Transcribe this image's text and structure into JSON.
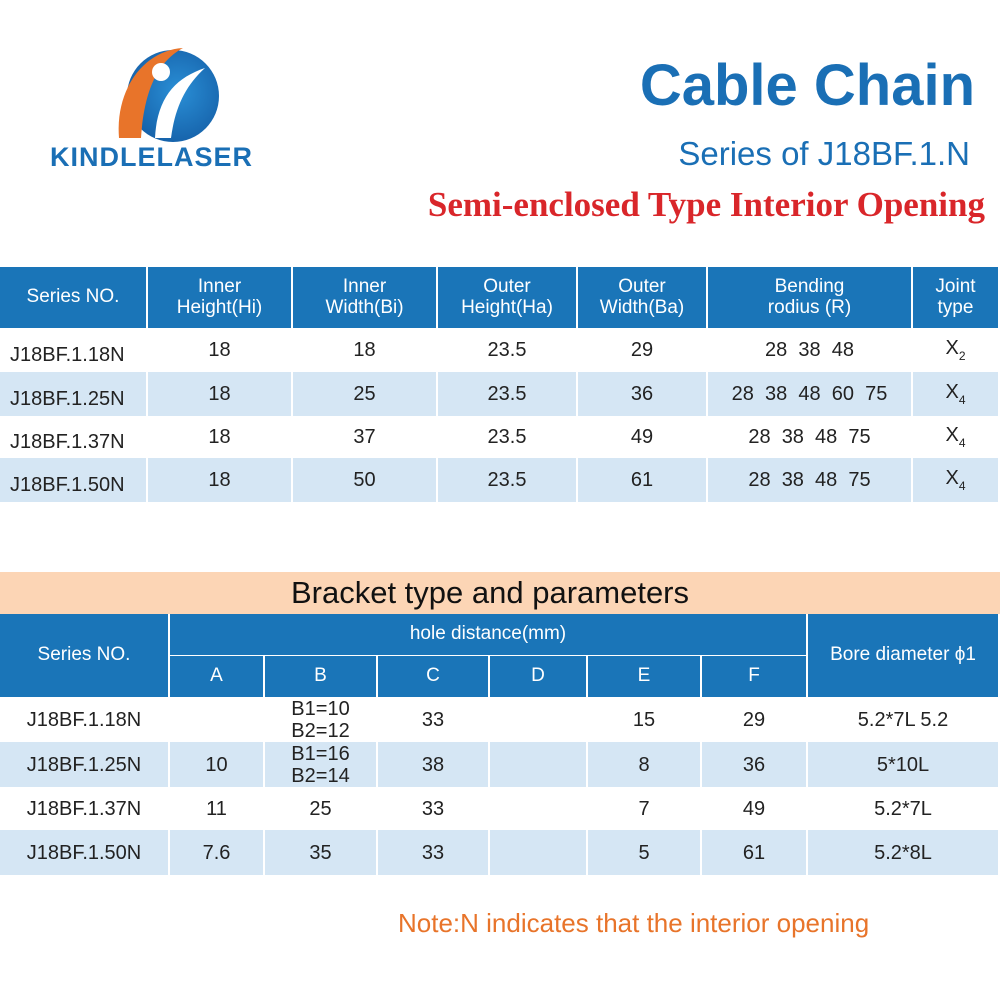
{
  "header": {
    "brand": "KINDLELASER",
    "title": "Cable Chain",
    "series": "Series of J18BF.1.N",
    "subtitle": "Semi-enclosed Type Interior Opening"
  },
  "table1": {
    "columns": [
      [
        "Series NO."
      ],
      [
        "Inner",
        "Height(Hi)"
      ],
      [
        "Inner",
        "Width(Bi)"
      ],
      [
        "Outer",
        "Height(Ha)"
      ],
      [
        "Outer",
        "Width(Ba)"
      ],
      [
        "Bending",
        "rodius (R)"
      ],
      [
        "Joint",
        "type"
      ]
    ],
    "rows": [
      [
        "J18BF.1.18N",
        "18",
        "18",
        "23.5",
        "29",
        "28  38  48",
        {
          "base": "X",
          "sub": "2"
        }
      ],
      [
        "J18BF.1.25N",
        "18",
        "25",
        "23.5",
        "36",
        "28  38  48  60  75",
        {
          "base": "X",
          "sub": "4"
        }
      ],
      [
        "J18BF.1.37N",
        "18",
        "37",
        "23.5",
        "49",
        "28  38  48  75",
        {
          "base": "X",
          "sub": "4"
        }
      ],
      [
        "J18BF.1.50N",
        "18",
        "50",
        "23.5",
        "61",
        "28  38  48  75",
        {
          "base": "X",
          "sub": "4"
        }
      ]
    ]
  },
  "table2": {
    "title": "Bracket type and parameters",
    "series_header": "Series NO.",
    "group_header": "hole distance(mm)",
    "sub_columns": [
      "A",
      "B",
      "C",
      "D",
      "E",
      "F"
    ],
    "bore_header": "Bore diameter ϕ1",
    "rows": [
      [
        "J18BF.1.18N",
        null,
        [
          "B1=10",
          "B2=12"
        ],
        "33",
        null,
        "15",
        "29",
        "5.2*7L 5.2"
      ],
      [
        "J18BF.1.25N",
        "10",
        [
          "B1=16",
          "B2=14"
        ],
        "38",
        null,
        "8",
        "36",
        "5*10L"
      ],
      [
        "J18BF.1.37N",
        "11",
        "25",
        "33",
        null,
        "7",
        "49",
        "5.2*7L"
      ],
      [
        "J18BF.1.50N",
        "7.6",
        "35",
        "33",
        null,
        "5",
        "61",
        "5.2*8L"
      ]
    ]
  },
  "note": "Note:N indicates that the interior opening"
}
